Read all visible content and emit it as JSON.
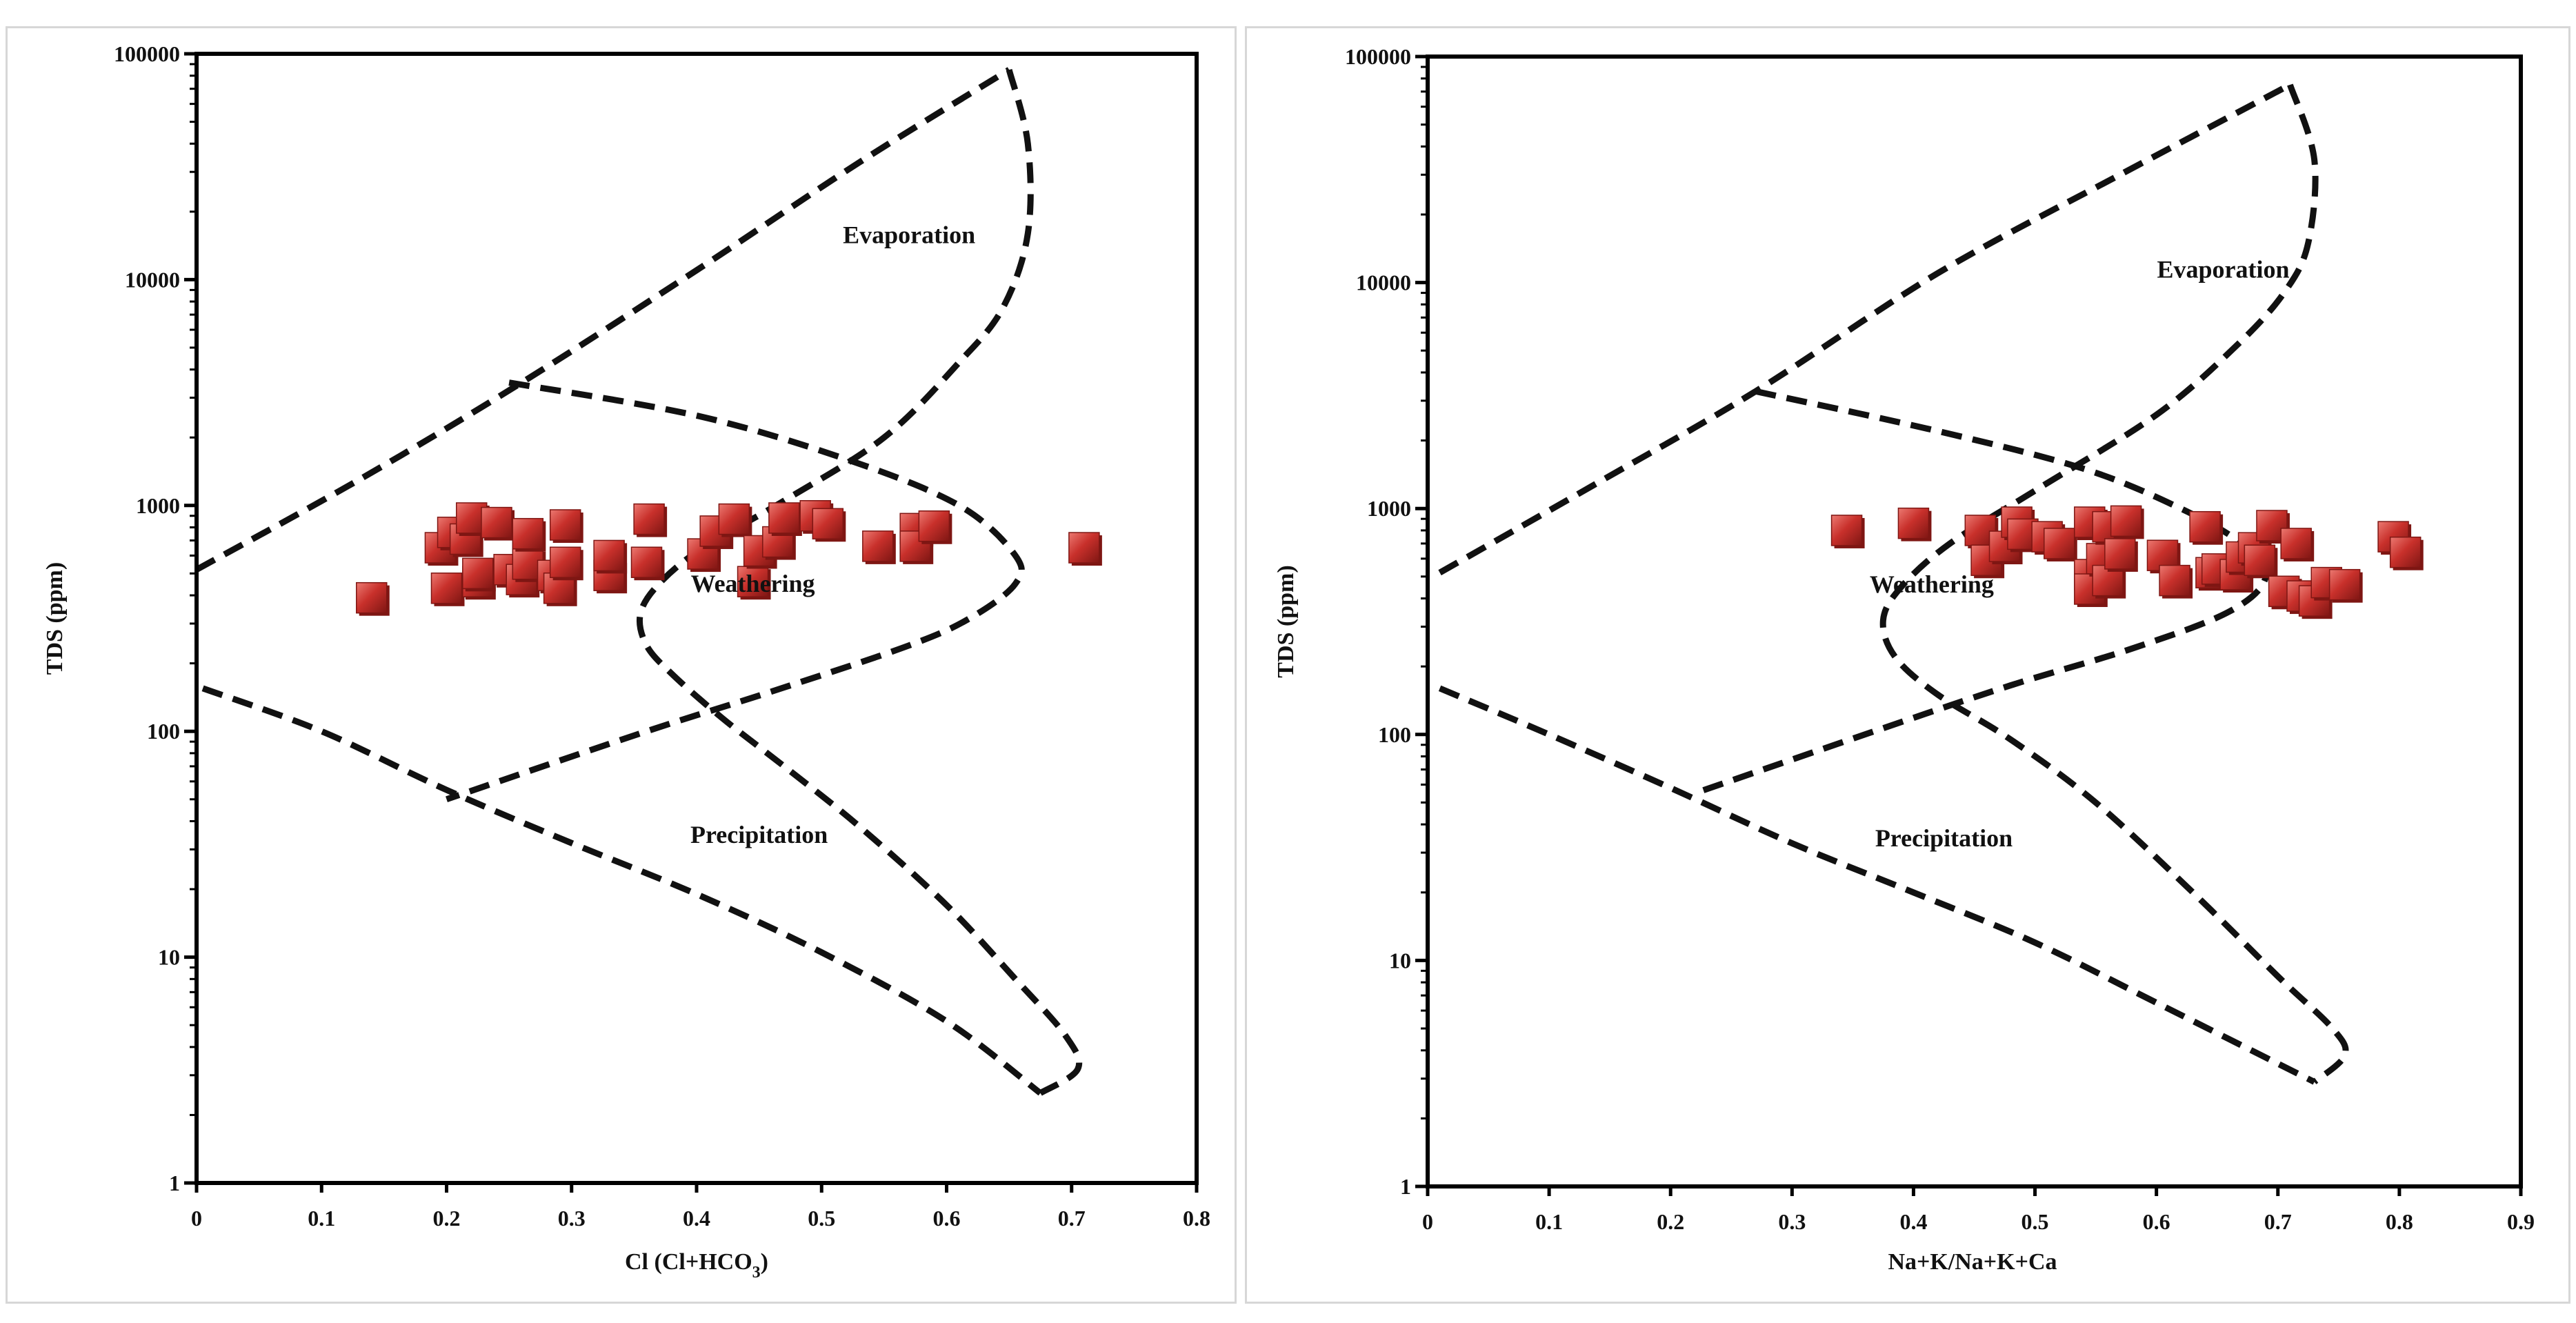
{
  "colors": {
    "marker_fill": "#c8302b",
    "marker_highlight": "#ec7a72",
    "marker_shadow": "#7e1613",
    "boundary": "#111111",
    "frame_border": "#d7d7d7"
  },
  "chart_data": [
    {
      "type": "scatter",
      "name": "gibbs-anion",
      "title": "",
      "xlabel": "Cl (Cl+HCO3)",
      "xlabel_parts": {
        "main": "Cl (Cl+HCO",
        "sub": "3",
        "end": ")"
      },
      "ylabel": "TDS (ppm)",
      "xlim": [
        0,
        0.8
      ],
      "ylim": [
        1,
        100000
      ],
      "yscale": "log",
      "grid": false,
      "legend": "none",
      "x_ticks": [
        "0",
        "0.1",
        "0.2",
        "0.3",
        "0.4",
        "0.5",
        "0.6",
        "0.7",
        "0.8"
      ],
      "x_tick_values": [
        0,
        0.1,
        0.2,
        0.3,
        0.4,
        0.5,
        0.6,
        0.7,
        0.8
      ],
      "y_ticks": [
        "1",
        "10",
        "100",
        "1000",
        "10000",
        "100000"
      ],
      "y_tick_values": [
        1,
        10,
        100,
        1000,
        10000,
        100000
      ],
      "annotations": [
        {
          "text": "Evaporation",
          "x": 0.57,
          "y": 14500
        },
        {
          "text": "Weathering",
          "x": 0.445,
          "y": 415
        },
        {
          "text": "Precipitation",
          "x": 0.45,
          "y": 32
        }
      ],
      "boundaries": [
        {
          "name": "upper-boundary",
          "points": [
            [
              0,
              520
            ],
            [
              0.13,
              1300
            ],
            [
              0.26,
              3500
            ],
            [
              0.4,
              11000
            ],
            [
              0.53,
              33000
            ],
            [
              0.65,
              85000
            ]
          ]
        },
        {
          "name": "evaporation-outline",
          "points": [
            [
              0.65,
              85000
            ],
            [
              0.665,
              40000
            ],
            [
              0.665,
              16000
            ],
            [
              0.645,
              7500
            ],
            [
              0.61,
              4300
            ],
            [
              0.55,
              2000
            ],
            [
              0.47,
              1050
            ],
            [
              0.405,
              650
            ],
            [
              0.37,
              450
            ],
            [
              0.355,
              330
            ],
            [
              0.36,
              240
            ],
            [
              0.38,
              180
            ],
            [
              0.42,
              115
            ],
            [
              0.47,
              70
            ],
            [
              0.53,
              38
            ],
            [
              0.6,
              17
            ],
            [
              0.655,
              8
            ],
            [
              0.695,
              4.5
            ],
            [
              0.705,
              3.2
            ],
            [
              0.675,
              2.5
            ]
          ]
        },
        {
          "name": "weathering-outline",
          "points": [
            [
              0.25,
              3500
            ],
            [
              0.4,
              2500
            ],
            [
              0.52,
              1600
            ],
            [
              0.61,
              1000
            ],
            [
              0.655,
              600
            ],
            [
              0.655,
              450
            ],
            [
              0.62,
              320
            ],
            [
              0.57,
              240
            ],
            [
              0.46,
              150
            ],
            [
              0.36,
              100
            ],
            [
              0.2,
              50
            ]
          ]
        },
        {
          "name": "lower-boundary",
          "points": [
            [
              0.005,
              155
            ],
            [
              0.1,
              100
            ],
            [
              0.2,
              55
            ],
            [
              0.3,
              32
            ],
            [
              0.4,
              19
            ],
            [
              0.5,
              10.5
            ],
            [
              0.6,
              5.2
            ],
            [
              0.675,
              2.5
            ]
          ]
        }
      ],
      "points": [
        [
          0.14,
          390
        ],
        [
          0.195,
          650
        ],
        [
          0.2,
          430
        ],
        [
          0.205,
          760
        ],
        [
          0.215,
          710
        ],
        [
          0.22,
          880
        ],
        [
          0.225,
          460
        ],
        [
          0.225,
          500
        ],
        [
          0.24,
          840
        ],
        [
          0.25,
          520
        ],
        [
          0.26,
          470
        ],
        [
          0.265,
          550
        ],
        [
          0.265,
          750
        ],
        [
          0.285,
          490
        ],
        [
          0.29,
          430
        ],
        [
          0.295,
          560
        ],
        [
          0.295,
          820
        ],
        [
          0.33,
          490
        ],
        [
          0.33,
          600
        ],
        [
          0.36,
          560
        ],
        [
          0.362,
          870
        ],
        [
          0.405,
          610
        ],
        [
          0.415,
          770
        ],
        [
          0.43,
          870
        ],
        [
          0.445,
          460
        ],
        [
          0.45,
          630
        ],
        [
          0.465,
          690
        ],
        [
          0.47,
          880
        ],
        [
          0.495,
          900
        ],
        [
          0.505,
          830
        ],
        [
          0.545,
          660
        ],
        [
          0.575,
          790
        ],
        [
          0.575,
          660
        ],
        [
          0.59,
          810
        ],
        [
          0.71,
          650
        ]
      ]
    },
    {
      "type": "scatter",
      "name": "gibbs-cation",
      "title": "",
      "xlabel": "Na+K/Na+K+Ca",
      "ylabel": "TDS (ppm)",
      "xlim": [
        0,
        0.9
      ],
      "ylim": [
        1,
        100000
      ],
      "yscale": "log",
      "grid": false,
      "legend": "none",
      "x_ticks": [
        "0",
        "0.1",
        "0.2",
        "0.3",
        "0.4",
        "0.5",
        "0.6",
        "0.7",
        "0.8",
        "0.9"
      ],
      "x_tick_values": [
        0,
        0.1,
        0.2,
        0.3,
        0.4,
        0.5,
        0.6,
        0.7,
        0.8,
        0.9
      ],
      "y_ticks": [
        "1",
        "10",
        "100",
        "1000",
        "10000",
        "100000"
      ],
      "y_tick_values": [
        1,
        10,
        100,
        1000,
        10000,
        100000
      ],
      "annotations": [
        {
          "text": "Evaporation",
          "x": 0.655,
          "y": 10500
        },
        {
          "text": "Weathering",
          "x": 0.415,
          "y": 425
        },
        {
          "text": "Precipitation",
          "x": 0.425,
          "y": 32
        }
      ],
      "boundaries": [
        {
          "name": "upper-boundary",
          "points": [
            [
              0.01,
              520
            ],
            [
              0.14,
              1300
            ],
            [
              0.27,
              3300
            ],
            [
              0.42,
              11000
            ],
            [
              0.57,
              30000
            ],
            [
              0.71,
              75000
            ]
          ]
        },
        {
          "name": "evaporation-outline",
          "points": [
            [
              0.71,
              75000
            ],
            [
              0.73,
              35000
            ],
            [
              0.725,
              15000
            ],
            [
              0.705,
              9000
            ],
            [
              0.665,
              5200
            ],
            [
              0.6,
              2600
            ],
            [
              0.5,
              1200
            ],
            [
              0.43,
              700
            ],
            [
              0.39,
              450
            ],
            [
              0.375,
              320
            ],
            [
              0.385,
              220
            ],
            [
              0.42,
              150
            ],
            [
              0.48,
              95
            ],
            [
              0.55,
              50
            ],
            [
              0.63,
              20
            ],
            [
              0.7,
              8.5
            ],
            [
              0.745,
              5
            ],
            [
              0.755,
              3.8
            ],
            [
              0.73,
              2.9
            ]
          ]
        },
        {
          "name": "weathering-outline",
          "points": [
            [
              0.27,
              3300
            ],
            [
              0.42,
              2200
            ],
            [
              0.54,
              1500
            ],
            [
              0.62,
              1000
            ],
            [
              0.67,
              700
            ],
            [
              0.69,
              500
            ],
            [
              0.66,
              350
            ],
            [
              0.58,
              240
            ],
            [
              0.48,
              165
            ],
            [
              0.36,
              100
            ],
            [
              0.22,
              55
            ]
          ]
        },
        {
          "name": "lower-boundary",
          "points": [
            [
              0.01,
              160
            ],
            [
              0.1,
              100
            ],
            [
              0.2,
              58
            ],
            [
              0.3,
              33
            ],
            [
              0.4,
              20
            ],
            [
              0.5,
              12
            ],
            [
              0.6,
              6.5
            ],
            [
              0.73,
              2.9
            ]
          ]
        }
      ],
      "points": [
        [
          0.345,
          800
        ],
        [
          0.4,
          860
        ],
        [
          0.455,
          800
        ],
        [
          0.46,
          590
        ],
        [
          0.475,
          680
        ],
        [
          0.485,
          870
        ],
        [
          0.49,
          770
        ],
        [
          0.51,
          750
        ],
        [
          0.52,
          700
        ],
        [
          0.545,
          870
        ],
        [
          0.545,
          510
        ],
        [
          0.545,
          440
        ],
        [
          0.555,
          600
        ],
        [
          0.56,
          830
        ],
        [
          0.56,
          480
        ],
        [
          0.57,
          630
        ],
        [
          0.575,
          880
        ],
        [
          0.605,
          620
        ],
        [
          0.615,
          480
        ],
        [
          0.64,
          830
        ],
        [
          0.645,
          520
        ],
        [
          0.65,
          540
        ],
        [
          0.665,
          510
        ],
        [
          0.67,
          610
        ],
        [
          0.68,
          670
        ],
        [
          0.685,
          590
        ],
        [
          0.695,
          840
        ],
        [
          0.705,
          430
        ],
        [
          0.715,
          700
        ],
        [
          0.72,
          410
        ],
        [
          0.73,
          390
        ],
        [
          0.74,
          470
        ],
        [
          0.755,
          460
        ],
        [
          0.795,
          750
        ],
        [
          0.805,
          640
        ]
      ]
    }
  ]
}
